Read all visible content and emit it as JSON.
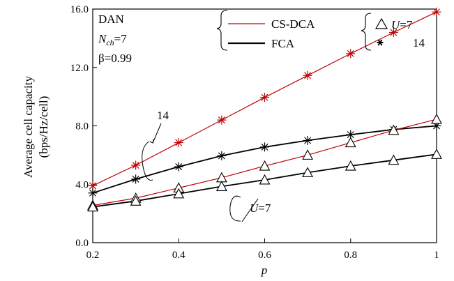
{
  "chart_data": {
    "type": "line",
    "xlabel": "p",
    "ylabel_line1": "Average cell capacity",
    "ylabel_line2": "(bps/Hz/cell)",
    "xlim": [
      0.2,
      1.0
    ],
    "ylim": [
      0.0,
      16.0
    ],
    "x_ticks": [
      0.2,
      0.4,
      0.6,
      0.8,
      1.0
    ],
    "x_tick_labels": [
      "0.2",
      "0.4",
      "0.6",
      "0.8",
      "1"
    ],
    "y_ticks": [
      0.0,
      4.0,
      8.0,
      12.0,
      16.0
    ],
    "y_tick_labels": [
      "0.0",
      "4.0",
      "8.0",
      "12.0",
      "16.0"
    ],
    "grid": false,
    "info": {
      "line1": "DAN",
      "nch_symbol": "N",
      "nch_subscript": "ch",
      "nch_value": "=7",
      "beta": "β=0.99"
    },
    "legend_schemes": [
      {
        "label": "CS-DCA",
        "color": "#c00000"
      },
      {
        "label": "FCA",
        "color": "#000000"
      }
    ],
    "legend_markers": [
      {
        "symbol": "triangle",
        "label_italic": "U",
        "label_rest": "=7"
      },
      {
        "symbol": "asterisk",
        "label": "14"
      }
    ],
    "annotations": {
      "u14": "14",
      "u7_italic": "U",
      "u7_rest": "=7"
    },
    "x": [
      0.2,
      0.3,
      0.4,
      0.5,
      0.6,
      0.7,
      0.8,
      0.9,
      1.0
    ],
    "series": [
      {
        "scheme": "CS-DCA",
        "marker": "asterisk",
        "color": "#c00000",
        "values": [
          3.9,
          5.3,
          6.85,
          8.4,
          9.95,
          11.45,
          12.95,
          14.4,
          15.8
        ]
      },
      {
        "scheme": "FCA",
        "marker": "asterisk",
        "color": "#000000",
        "values": [
          3.4,
          4.35,
          5.2,
          5.95,
          6.55,
          7.0,
          7.4,
          7.75,
          8.0
        ]
      },
      {
        "scheme": "CS-DCA",
        "marker": "triangle",
        "color": "#c00000",
        "values": [
          2.55,
          3.05,
          3.75,
          4.45,
          5.25,
          6.0,
          6.85,
          7.7,
          8.45
        ]
      },
      {
        "scheme": "FCA",
        "marker": "triangle",
        "color": "#000000",
        "values": [
          2.45,
          2.85,
          3.35,
          3.85,
          4.3,
          4.8,
          5.25,
          5.65,
          6.05
        ]
      }
    ]
  }
}
